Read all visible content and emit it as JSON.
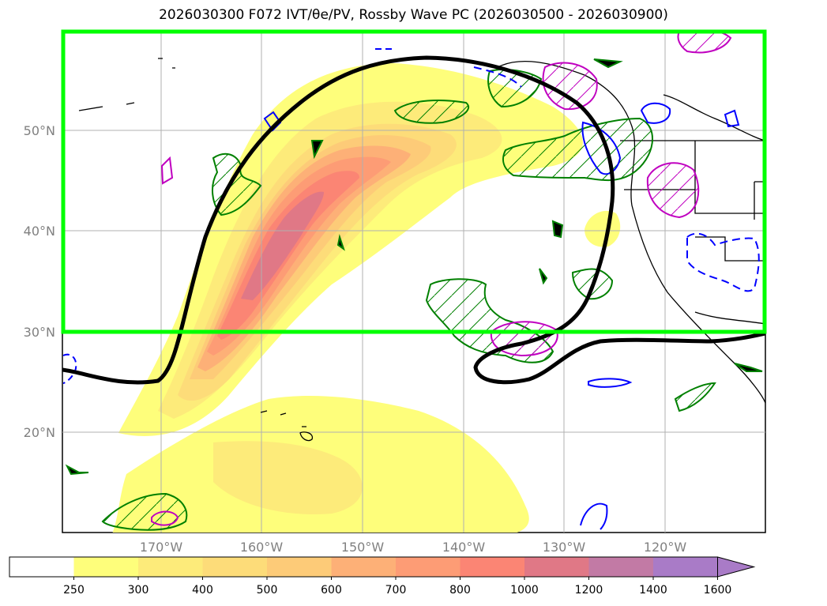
{
  "title": "2026030300 F072 IVT/θe/PV, Rossby Wave PC (2026030500 - 2026030900)",
  "map": {
    "lon_labels": [
      "170°W",
      "160°W",
      "150°W",
      "140°W",
      "130°W",
      "120°W"
    ],
    "lat_labels": [
      "50°N",
      "40°N",
      "30°N",
      "20°N"
    ],
    "lon_values": [
      -170,
      -160,
      -150,
      -140,
      -130,
      -120
    ],
    "lat_values": [
      50,
      40,
      30,
      20
    ],
    "extent": {
      "lon_min": -180,
      "lon_max": -110,
      "lat_min": 10,
      "lat_max": 60
    },
    "highlight_box": {
      "lat_min": 30,
      "lat_max": 60,
      "color": "#00ff00"
    },
    "gridlines": true
  },
  "colorbar": {
    "ticks": [
      "250",
      "300",
      "400",
      "500",
      "600",
      "700",
      "800",
      "1000",
      "1200",
      "1400",
      "1600"
    ],
    "colors": [
      "#ffffff",
      "#fefe7b",
      "#fdeb7a",
      "#fddc79",
      "#fdcb78",
      "#fdb077",
      "#fd9c75",
      "#fb8574",
      "#e07886",
      "#c27aa5",
      "#a97bc7"
    ],
    "extend": "max"
  },
  "contour_colors": {
    "rossby_wave": "#000000",
    "pv_positive": "#008000",
    "theta_e_low": "#0000ff",
    "pv_magenta": "#c000c0"
  }
}
